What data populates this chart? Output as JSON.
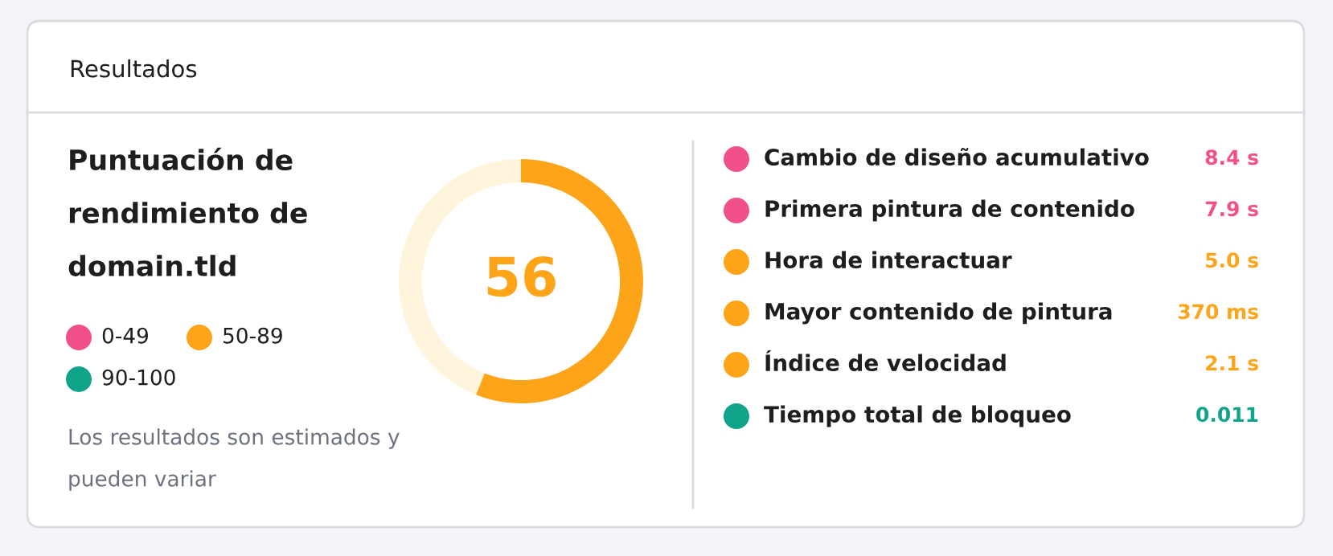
{
  "chart_data": [
    {
      "type": "other",
      "title": "Resultados"
    },
    {
      "type": "donut",
      "title": "Puntuación de rendimiento de domain.tld",
      "categories": [
        null,
        null
      ],
      "values": [
        56,
        44
      ],
      "colors": [
        "#fea419",
        "#fff5dd"
      ],
      "annotations": [
        "56"
      ]
    },
    {
      "type": "other",
      "annotations": [
        "0-49",
        "50-89",
        "90-100",
        "Los resultados son estimados y pueden variar"
      ],
      "colors": [
        "#f2508a",
        "#fea419",
        "#10a58a"
      ]
    },
    {
      "type": "other",
      "annotations": [
        "Cambio de diseño acumulativo",
        "8.4 s",
        "Primera pintura de contenido",
        "7.9 s",
        "Hora de interactuar",
        "5.0 s",
        "Mayor contenido de pintura",
        "370 ms",
        "Índice de velocidad",
        "2.1 s",
        "Tiempo total de bloqueo",
        "0.011"
      ],
      "colors": [
        "#f2508a",
        "#f2508a",
        "#fea419",
        "#fea419",
        "#fea419",
        "#10a58a"
      ]
    }
  ]
}
